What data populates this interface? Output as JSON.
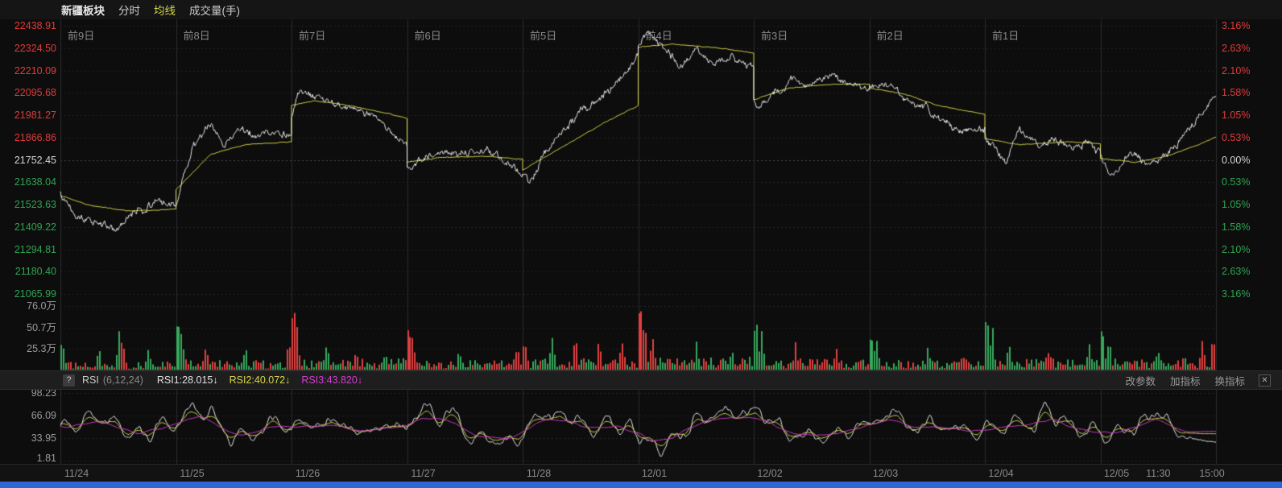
{
  "colors": {
    "bg": "#0d0d0d",
    "up": "#e04040",
    "down": "#38a85c",
    "up_text": "#e03a3a",
    "down_text": "#2fa352",
    "neutral_text": "#d4d4d4",
    "gray_text": "#8a8a8a",
    "price_line": "#e8e8e8",
    "ma_line": "#d2d24a",
    "rsi1": "#e8e8e8",
    "rsi2": "#d6d64a",
    "rsi3": "#d43cd4",
    "grid": "#242424",
    "grid_mid": "#4a4a4a",
    "grid_vert": "#2c2c2c",
    "scrollbar_blue": "#2e66d6"
  },
  "header": {
    "tabs": [
      {
        "label": "新疆板块",
        "color": "#e8e8e8"
      },
      {
        "label": "分时",
        "color": "#cccccc"
      },
      {
        "label": "均线",
        "color": "#d6d64a"
      },
      {
        "label": "成交量(手)",
        "color": "#cccccc"
      }
    ]
  },
  "main_chart": {
    "day_labels": [
      "前9日",
      "前8日",
      "前7日",
      "前6日",
      "前5日",
      "前4日",
      "前3日",
      "前2日",
      "前1日"
    ],
    "price_axis": [
      "22438.91",
      "22324.50",
      "22210.09",
      "22095.68",
      "21981.27",
      "21866.86",
      "21752.45",
      "21638.04",
      "21523.63",
      "21409.22",
      "21294.81",
      "21180.40",
      "21065.99"
    ],
    "percent_axis": [
      "3.16%",
      "2.63%",
      "2.10%",
      "1.58%",
      "1.05%",
      "0.53%",
      "0.00%",
      "0.53%",
      "1.05%",
      "1.58%",
      "2.10%",
      "2.63%",
      "3.16%"
    ]
  },
  "volume_pane": {
    "axis": [
      "76.0万",
      "50.7万",
      "25.3万"
    ]
  },
  "rsi_pane": {
    "help_icon": "?",
    "indicator_name": "RSI",
    "params": "(6,12,24)",
    "values": [
      {
        "label": "RSI1:28.015↓",
        "color": "#e0e0e0"
      },
      {
        "label": "RSI2:40.072↓",
        "color": "#d6d64a"
      },
      {
        "label": "RSI3:43.820↓",
        "color": "#d43cd4"
      }
    ],
    "actions": [
      "改参数",
      "加指标",
      "换指标"
    ],
    "close_label": "✕",
    "axis": [
      "98.23",
      "66.09",
      "33.95",
      "1.81"
    ]
  },
  "x_axis": {
    "date_labels": [
      "11/24",
      "11/25",
      "11/26",
      "11/27",
      "11/28",
      "12/01",
      "12/02",
      "12/03",
      "12/04",
      "12/05"
    ],
    "time_labels": [
      "11:30",
      "15:00"
    ]
  },
  "chart_data": {
    "type": "line",
    "title": "新疆板块",
    "baseline_price": 21752.45,
    "ylim": [
      21065.99,
      22438.91
    ],
    "percent_range": [
      -3.16,
      3.16
    ],
    "price_levels": [
      22438.91,
      22324.5,
      22210.09,
      22095.68,
      21981.27,
      21866.86,
      21752.45,
      21638.04,
      21523.63,
      21409.22,
      21294.81,
      21180.4,
      21065.99
    ],
    "volume_ticks": [
      76.0,
      50.7,
      25.3
    ],
    "volume_unit": "万",
    "price_noise": 28,
    "price_jitter": 10,
    "days": [
      {
        "date": "11/24",
        "price": [
          [
            0,
            21590
          ],
          [
            0.12,
            21500
          ],
          [
            0.3,
            21430
          ],
          [
            0.5,
            21390
          ],
          [
            0.62,
            21470
          ],
          [
            0.8,
            21530
          ],
          [
            1,
            21525
          ]
        ],
        "avg": [
          [
            0,
            21570
          ],
          [
            0.25,
            21520
          ],
          [
            0.6,
            21490
          ],
          [
            1,
            21500
          ]
        ],
        "vbase": 6,
        "vspikes": [
          [
            0.01,
            28,
            "g"
          ],
          [
            0.33,
            20,
            "g"
          ],
          [
            0.5,
            38,
            "g"
          ],
          [
            0.53,
            24,
            "r"
          ],
          [
            0.75,
            14,
            "g"
          ]
        ]
      },
      {
        "date": "11/25",
        "price": [
          [
            0,
            21530
          ],
          [
            0.15,
            21820
          ],
          [
            0.28,
            21930
          ],
          [
            0.42,
            21850
          ],
          [
            0.58,
            21905
          ],
          [
            0.72,
            21865
          ],
          [
            0.88,
            21900
          ],
          [
            1,
            21880
          ]
        ],
        "avg": [
          [
            0,
            21600
          ],
          [
            0.3,
            21780
          ],
          [
            0.6,
            21830
          ],
          [
            1,
            21845
          ]
        ],
        "vbase": 7,
        "vspikes": [
          [
            0.01,
            58,
            "g"
          ],
          [
            0.05,
            36,
            "g"
          ],
          [
            0.25,
            22,
            "r"
          ],
          [
            0.6,
            16,
            "g"
          ],
          [
            0.97,
            30,
            "r"
          ]
        ]
      },
      {
        "date": "11/26",
        "price": [
          [
            0,
            21970
          ],
          [
            0.07,
            22100
          ],
          [
            0.2,
            22060
          ],
          [
            0.4,
            22040
          ],
          [
            0.6,
            21995
          ],
          [
            0.8,
            21930
          ],
          [
            0.93,
            21860
          ],
          [
            1,
            21830
          ]
        ],
        "avg": [
          [
            0,
            22030
          ],
          [
            0.2,
            22055
          ],
          [
            0.5,
            22030
          ],
          [
            0.8,
            21995
          ],
          [
            1,
            21965
          ]
        ],
        "vbase": 8,
        "vspikes": [
          [
            0.01,
            72,
            "r"
          ],
          [
            0.04,
            44,
            "r"
          ],
          [
            0.3,
            22,
            "g"
          ],
          [
            0.55,
            18,
            "r"
          ],
          [
            0.8,
            14,
            "g"
          ]
        ]
      },
      {
        "date": "11/27",
        "price": [
          [
            0,
            21730
          ],
          [
            0.05,
            21705
          ],
          [
            0.25,
            21800
          ],
          [
            0.5,
            21790
          ],
          [
            0.7,
            21800
          ],
          [
            0.85,
            21755
          ],
          [
            1,
            21690
          ]
        ],
        "avg": [
          [
            0,
            21740
          ],
          [
            0.3,
            21765
          ],
          [
            0.7,
            21770
          ],
          [
            1,
            21755
          ]
        ],
        "vbase": 7,
        "vspikes": [
          [
            0.01,
            50,
            "r"
          ],
          [
            0.05,
            30,
            "r"
          ],
          [
            0.45,
            18,
            "g"
          ],
          [
            0.95,
            22,
            "r"
          ]
        ]
      },
      {
        "date": "11/28",
        "price": [
          [
            0,
            21680
          ],
          [
            0.05,
            21635
          ],
          [
            0.2,
            21800
          ],
          [
            0.4,
            21930
          ],
          [
            0.6,
            22040
          ],
          [
            0.8,
            22130
          ],
          [
            0.93,
            22230
          ],
          [
            1,
            22290
          ]
        ],
        "avg": [
          [
            0,
            21700
          ],
          [
            0.35,
            21820
          ],
          [
            0.7,
            21940
          ],
          [
            1,
            22030
          ]
        ],
        "vbase": 8,
        "vspikes": [
          [
            0.01,
            30,
            "r"
          ],
          [
            0.25,
            26,
            "g"
          ],
          [
            0.45,
            30,
            "r"
          ],
          [
            0.65,
            24,
            "r"
          ],
          [
            0.85,
            20,
            "r"
          ]
        ]
      },
      {
        "date": "12/01",
        "price": [
          [
            0,
            22330
          ],
          [
            0.08,
            22430
          ],
          [
            0.2,
            22340
          ],
          [
            0.35,
            22255
          ],
          [
            0.5,
            22300
          ],
          [
            0.65,
            22250
          ],
          [
            0.8,
            22275
          ],
          [
            0.93,
            22235
          ],
          [
            1,
            22215
          ]
        ],
        "avg": [
          [
            0,
            22330
          ],
          [
            0.3,
            22345
          ],
          [
            0.7,
            22325
          ],
          [
            1,
            22300
          ]
        ],
        "vbase": 9,
        "vspikes": [
          [
            0.01,
            78,
            "r"
          ],
          [
            0.05,
            48,
            "r"
          ],
          [
            0.12,
            30,
            "r"
          ],
          [
            0.5,
            18,
            "g"
          ],
          [
            0.8,
            16,
            "g"
          ]
        ]
      },
      {
        "date": "12/02",
        "price": [
          [
            0,
            22050
          ],
          [
            0.05,
            21995
          ],
          [
            0.2,
            22120
          ],
          [
            0.35,
            22150
          ],
          [
            0.5,
            22130
          ],
          [
            0.65,
            22175
          ],
          [
            0.8,
            22140
          ],
          [
            1,
            22125
          ]
        ],
        "avg": [
          [
            0,
            22060
          ],
          [
            0.3,
            22120
          ],
          [
            0.7,
            22140
          ],
          [
            1,
            22140
          ]
        ],
        "vbase": 8,
        "vspikes": [
          [
            0.01,
            58,
            "g"
          ],
          [
            0.06,
            36,
            "g"
          ],
          [
            0.35,
            20,
            "r"
          ],
          [
            0.7,
            16,
            "r"
          ]
        ]
      },
      {
        "date": "12/03",
        "price": [
          [
            0,
            22130
          ],
          [
            0.1,
            22150
          ],
          [
            0.3,
            22070
          ],
          [
            0.5,
            22010
          ],
          [
            0.7,
            21935
          ],
          [
            0.85,
            21890
          ],
          [
            0.95,
            21915
          ],
          [
            1,
            21900
          ]
        ],
        "avg": [
          [
            0,
            22120
          ],
          [
            0.3,
            22090
          ],
          [
            0.6,
            22030
          ],
          [
            1,
            21985
          ]
        ],
        "vbase": 7,
        "vspikes": [
          [
            0.01,
            44,
            "g"
          ],
          [
            0.06,
            28,
            "g"
          ],
          [
            0.5,
            16,
            "g"
          ],
          [
            0.8,
            14,
            "r"
          ]
        ]
      },
      {
        "date": "12/04",
        "price": [
          [
            0,
            21885
          ],
          [
            0.1,
            21800
          ],
          [
            0.18,
            21735
          ],
          [
            0.3,
            21915
          ],
          [
            0.45,
            21830
          ],
          [
            0.6,
            21855
          ],
          [
            0.75,
            21820
          ],
          [
            0.9,
            21840
          ],
          [
            1,
            21785
          ]
        ],
        "avg": [
          [
            0,
            21860
          ],
          [
            0.3,
            21830
          ],
          [
            0.7,
            21845
          ],
          [
            1,
            21835
          ]
        ],
        "vbase": 8,
        "vspikes": [
          [
            0.01,
            60,
            "g"
          ],
          [
            0.06,
            40,
            "g"
          ],
          [
            0.2,
            28,
            "g"
          ],
          [
            0.55,
            16,
            "r"
          ],
          [
            0.9,
            18,
            "g"
          ]
        ]
      },
      {
        "date": "12/05",
        "price": [
          [
            0,
            21770
          ],
          [
            0.1,
            21690
          ],
          [
            0.25,
            21770
          ],
          [
            0.4,
            21730
          ],
          [
            0.55,
            21765
          ],
          [
            0.7,
            21860
          ],
          [
            0.85,
            21970
          ],
          [
            1,
            22070
          ]
        ],
        "avg": [
          [
            0,
            21760
          ],
          [
            0.3,
            21740
          ],
          [
            0.6,
            21775
          ],
          [
            0.85,
            21830
          ],
          [
            1,
            21870
          ]
        ],
        "vbase": 8,
        "vspikes": [
          [
            0.01,
            54,
            "g"
          ],
          [
            0.07,
            30,
            "g"
          ],
          [
            0.5,
            14,
            "g"
          ],
          [
            0.88,
            24,
            "r"
          ],
          [
            0.97,
            30,
            "r"
          ]
        ]
      }
    ],
    "rsi": {
      "ylim": [
        1.81,
        98.23
      ],
      "ticks": [
        98.23,
        66.09,
        33.95,
        1.81
      ],
      "series": [
        {
          "name": "RSI1",
          "period": 6,
          "final": 28.015,
          "direction": "down"
        },
        {
          "name": "RSI2",
          "period": 12,
          "final": 40.072,
          "direction": "down"
        },
        {
          "name": "RSI3",
          "period": 24,
          "final": 43.82,
          "direction": "down"
        }
      ]
    }
  }
}
